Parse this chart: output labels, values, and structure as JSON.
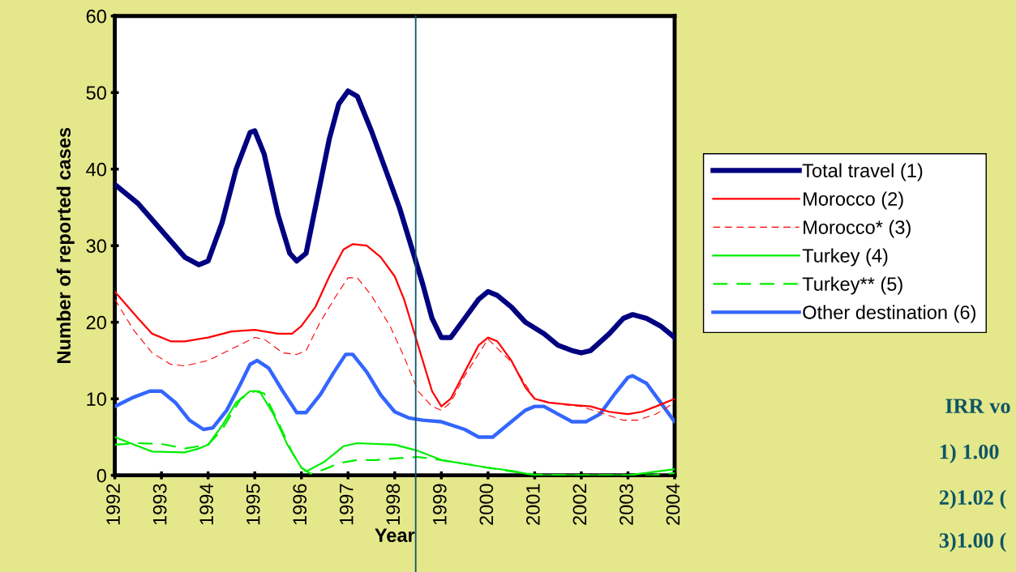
{
  "chart_data": {
    "type": "line",
    "xlabel": "Year",
    "ylabel": "Number of reported cases",
    "xlim": [
      1992,
      2004
    ],
    "xticks": [
      1992,
      1993,
      1994,
      1995,
      1996,
      1997,
      1998,
      1999,
      2000,
      2001,
      2002,
      2003,
      2004
    ],
    "ylim": [
      0,
      60
    ],
    "yticks": [
      0,
      10,
      20,
      30,
      40,
      50,
      60
    ],
    "grid": false,
    "legend": "right",
    "marker": "none",
    "ref_lines": [
      {
        "axis": "x",
        "value": 1998.45,
        "label": null,
        "color": "#0e5566",
        "line_style": "solid"
      }
    ],
    "annotations": [
      "IRR vo",
      "1) 1.00",
      "2)1.02 (",
      "3)1.00 ("
    ],
    "series": [
      {
        "name": "Total travel (1)",
        "color": "#000080",
        "line_style": "solid",
        "x": [
          1992,
          1992.5,
          1993,
          1993.5,
          1993.8,
          1994,
          1994.3,
          1994.6,
          1994.9,
          1995,
          1995.2,
          1995.5,
          1995.75,
          1995.9,
          1996.1,
          1996.3,
          1996.6,
          1996.8,
          1997,
          1997.2,
          1997.5,
          1997.8,
          1998.1,
          1998.4,
          1998.6,
          1998.8,
          1999,
          1999.2,
          1999.5,
          1999.8,
          2000,
          2000.2,
          2000.5,
          2000.8,
          2001.2,
          2001.5,
          2001.8,
          2002,
          2002.2,
          2002.6,
          2002.9,
          2003.1,
          2003.4,
          2003.7,
          2004
        ],
        "values": [
          38,
          35.5,
          32,
          28.5,
          27.5,
          28,
          33,
          40,
          44.8,
          45,
          42,
          34,
          29,
          28,
          29,
          35,
          44,
          48.5,
          50.2,
          49.5,
          45,
          40,
          35,
          29,
          25,
          20.5,
          18,
          18,
          20.5,
          23,
          24,
          23.5,
          22,
          20,
          18.5,
          17,
          16.3,
          16,
          16.3,
          18.5,
          20.5,
          21,
          20.5,
          19.5,
          18
        ]
      },
      {
        "name": "Morocco (2)",
        "color": "#ff0000",
        "line_style": "solid",
        "x": [
          1992,
          1992.5,
          1992.8,
          1993.2,
          1993.5,
          1994,
          1994.5,
          1995,
          1995.5,
          1995.8,
          1996,
          1996.3,
          1996.6,
          1996.9,
          1997.1,
          1997.4,
          1997.7,
          1998,
          1998.2,
          1998.5,
          1998.8,
          1999,
          1999.2,
          1999.5,
          1999.8,
          2000,
          2000.2,
          2000.5,
          2000.8,
          2001,
          2001.3,
          2001.8,
          2002.2,
          2002.6,
          2003,
          2003.3,
          2003.6,
          2004
        ],
        "values": [
          24,
          20.5,
          18.5,
          17.5,
          17.5,
          18,
          18.8,
          19,
          18.5,
          18.5,
          19.5,
          22,
          26,
          29.5,
          30.2,
          30,
          28.5,
          26,
          23,
          17,
          11,
          9,
          10,
          13.5,
          17,
          18,
          17.5,
          15,
          11.5,
          10,
          9.5,
          9.2,
          9,
          8.3,
          8,
          8.3,
          9,
          10
        ]
      },
      {
        "name": "Morocco* (3)",
        "color": "#ff0000",
        "line_style": "dashed",
        "x": [
          1992,
          1992.4,
          1992.8,
          1993.2,
          1993.5,
          1994,
          1994.5,
          1995,
          1995.2,
          1995.6,
          1995.9,
          1996.1,
          1996.4,
          1996.8,
          1997,
          1997.2,
          1997.5,
          1997.9,
          1998.2,
          1998.5,
          1998.8,
          1999,
          1999.2,
          1999.5,
          2000,
          2000.5,
          2001,
          2001.5,
          2002,
          2002.5,
          2002.9,
          2003.2,
          2003.6,
          2004
        ],
        "values": [
          23,
          19,
          16,
          14.5,
          14.3,
          15,
          16.5,
          18,
          17.8,
          16,
          15.8,
          16.3,
          20,
          24,
          25.8,
          25.8,
          23.5,
          19.5,
          15.5,
          11,
          9,
          8.5,
          9.5,
          13,
          17.8,
          14.8,
          10,
          9.3,
          9,
          8,
          7.2,
          7.2,
          8,
          9.5
        ]
      },
      {
        "name": "Turkey (4)",
        "color": "#00ee00",
        "line_style": "solid",
        "x": [
          1992,
          1992.5,
          1992.8,
          1993.5,
          1993.8,
          1994,
          1994.3,
          1994.6,
          1994.9,
          1995.1,
          1995.4,
          1995.7,
          1996,
          1996.1,
          1996.5,
          1996.9,
          1997.2,
          1998,
          1998.5,
          1999,
          1999.5,
          2000,
          2000.5,
          2001,
          2002,
          2003,
          2003.5,
          2004
        ],
        "values": [
          5,
          3.8,
          3.1,
          3,
          3.5,
          4,
          6.5,
          9.5,
          11,
          11,
          8,
          4,
          1,
          0.5,
          1.8,
          3.8,
          4.2,
          4,
          3.2,
          2,
          1.5,
          1,
          0.6,
          0,
          0,
          0,
          0.4,
          0.8
        ]
      },
      {
        "name": "Turkey** (5)",
        "color": "#00ee00",
        "line_style": "dashed",
        "x": [
          1992,
          1992.5,
          1993,
          1993.5,
          1994,
          1994.3,
          1994.7,
          1995,
          1995.2,
          1995.5,
          1995.8,
          1996,
          1996.2,
          1996.5,
          1996.8,
          1997.2,
          1997.6,
          1998,
          1998.5,
          1999,
          1999.5,
          2000,
          2000.5,
          2001,
          2002,
          2003,
          2003.5,
          2004
        ],
        "values": [
          4,
          4.2,
          4.1,
          3.5,
          4,
          6,
          10,
          11,
          10.7,
          7,
          3,
          1,
          0.2,
          0.8,
          1.6,
          2,
          2,
          2.2,
          2.4,
          2,
          1.5,
          1,
          0.5,
          0.1,
          0,
          0,
          0,
          0.3
        ]
      },
      {
        "name": "Other destination (6)",
        "color": "#3366ff",
        "line_style": "solid",
        "x": [
          1992,
          1992.4,
          1992.75,
          1993,
          1993.3,
          1993.6,
          1993.9,
          1994.1,
          1994.4,
          1994.7,
          1994.9,
          1995.05,
          1995.3,
          1995.6,
          1995.9,
          1996.1,
          1996.4,
          1996.7,
          1996.95,
          1997.1,
          1997.4,
          1997.7,
          1998,
          1998.3,
          1998.6,
          1999,
          1999.5,
          1999.8,
          2000.1,
          2000.4,
          2000.8,
          2001,
          2001.2,
          2001.5,
          2001.8,
          2002.1,
          2002.4,
          2002.7,
          2003,
          2003.1,
          2003.4,
          2003.7,
          2004
        ],
        "values": [
          9,
          10.2,
          11,
          11,
          9.5,
          7.2,
          6,
          6.2,
          8.5,
          12,
          14.5,
          15,
          14,
          11,
          8.2,
          8.2,
          10.5,
          13.5,
          15.8,
          15.8,
          13.5,
          10.5,
          8.3,
          7.5,
          7.2,
          7,
          6,
          5,
          5,
          6.5,
          8.5,
          9,
          9,
          8,
          7,
          7,
          8,
          10.5,
          12.8,
          13,
          12,
          9.5,
          7
        ]
      }
    ]
  }
}
